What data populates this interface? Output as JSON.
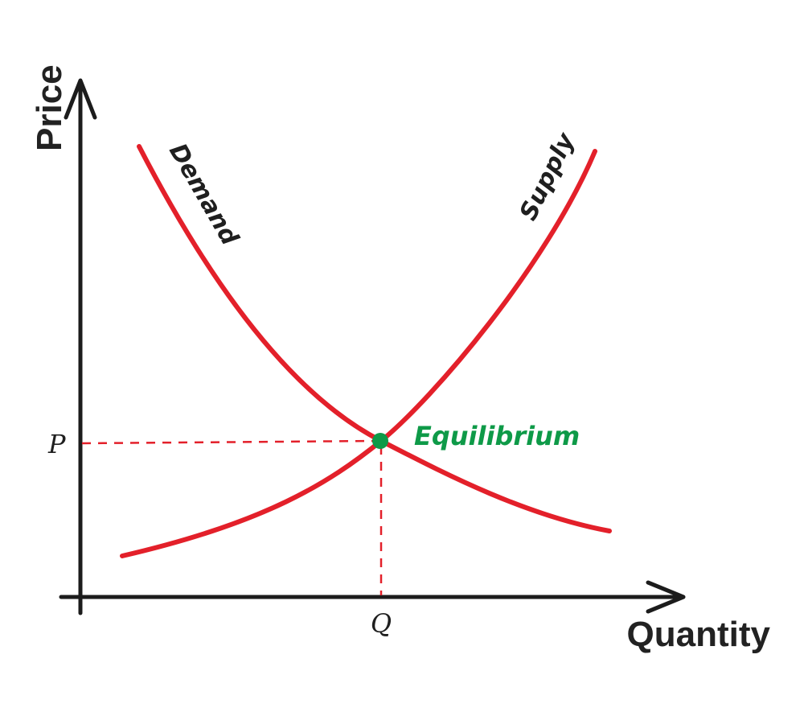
{
  "axes": {
    "y_title": "Price",
    "x_title": "Quantity"
  },
  "curves": {
    "demand_label": "Demand",
    "supply_label": "Supply"
  },
  "equilibrium": {
    "label": "Equilibrium",
    "price_tick": "P",
    "quantity_tick": "Q"
  },
  "colors": {
    "curve": "#e3202a",
    "equilibrium": "#0e9a48",
    "axis": "#1c1c1c"
  }
}
